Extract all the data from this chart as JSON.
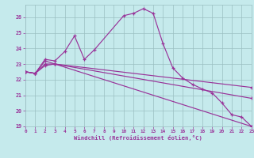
{
  "bg_color": "#c5eaec",
  "grid_color": "#9bbfc2",
  "line_color": "#993399",
  "xlim": [
    0,
    23
  ],
  "ylim": [
    19,
    26.8
  ],
  "yticks": [
    19,
    20,
    21,
    22,
    23,
    24,
    25,
    26
  ],
  "xticks": [
    0,
    1,
    2,
    3,
    4,
    5,
    6,
    7,
    8,
    9,
    10,
    11,
    12,
    13,
    14,
    15,
    16,
    17,
    18,
    19,
    20,
    21,
    22,
    23
  ],
  "xlabel": "Windchill (Refroidissement éolien,°C)",
  "series": [
    {
      "x": [
        0,
        1,
        2,
        3,
        4,
        5,
        6,
        7,
        10,
        11,
        12,
        13,
        14,
        15,
        16,
        17,
        18,
        19,
        20,
        21,
        22,
        23
      ],
      "y": [
        22.5,
        22.4,
        23.3,
        23.2,
        23.8,
        24.8,
        23.3,
        23.9,
        26.1,
        26.25,
        26.55,
        26.25,
        24.3,
        22.75,
        22.1,
        21.7,
        21.4,
        21.15,
        20.5,
        19.75,
        19.6,
        19.0
      ]
    },
    {
      "x": [
        0,
        1,
        2,
        3,
        23
      ],
      "y": [
        22.5,
        22.4,
        23.2,
        23.0,
        21.5
      ]
    },
    {
      "x": [
        0,
        1,
        2,
        3,
        23
      ],
      "y": [
        22.5,
        22.4,
        23.0,
        23.0,
        20.8
      ]
    },
    {
      "x": [
        0,
        1,
        2,
        3,
        23
      ],
      "y": [
        22.5,
        22.4,
        22.9,
        23.0,
        19.0
      ]
    }
  ]
}
